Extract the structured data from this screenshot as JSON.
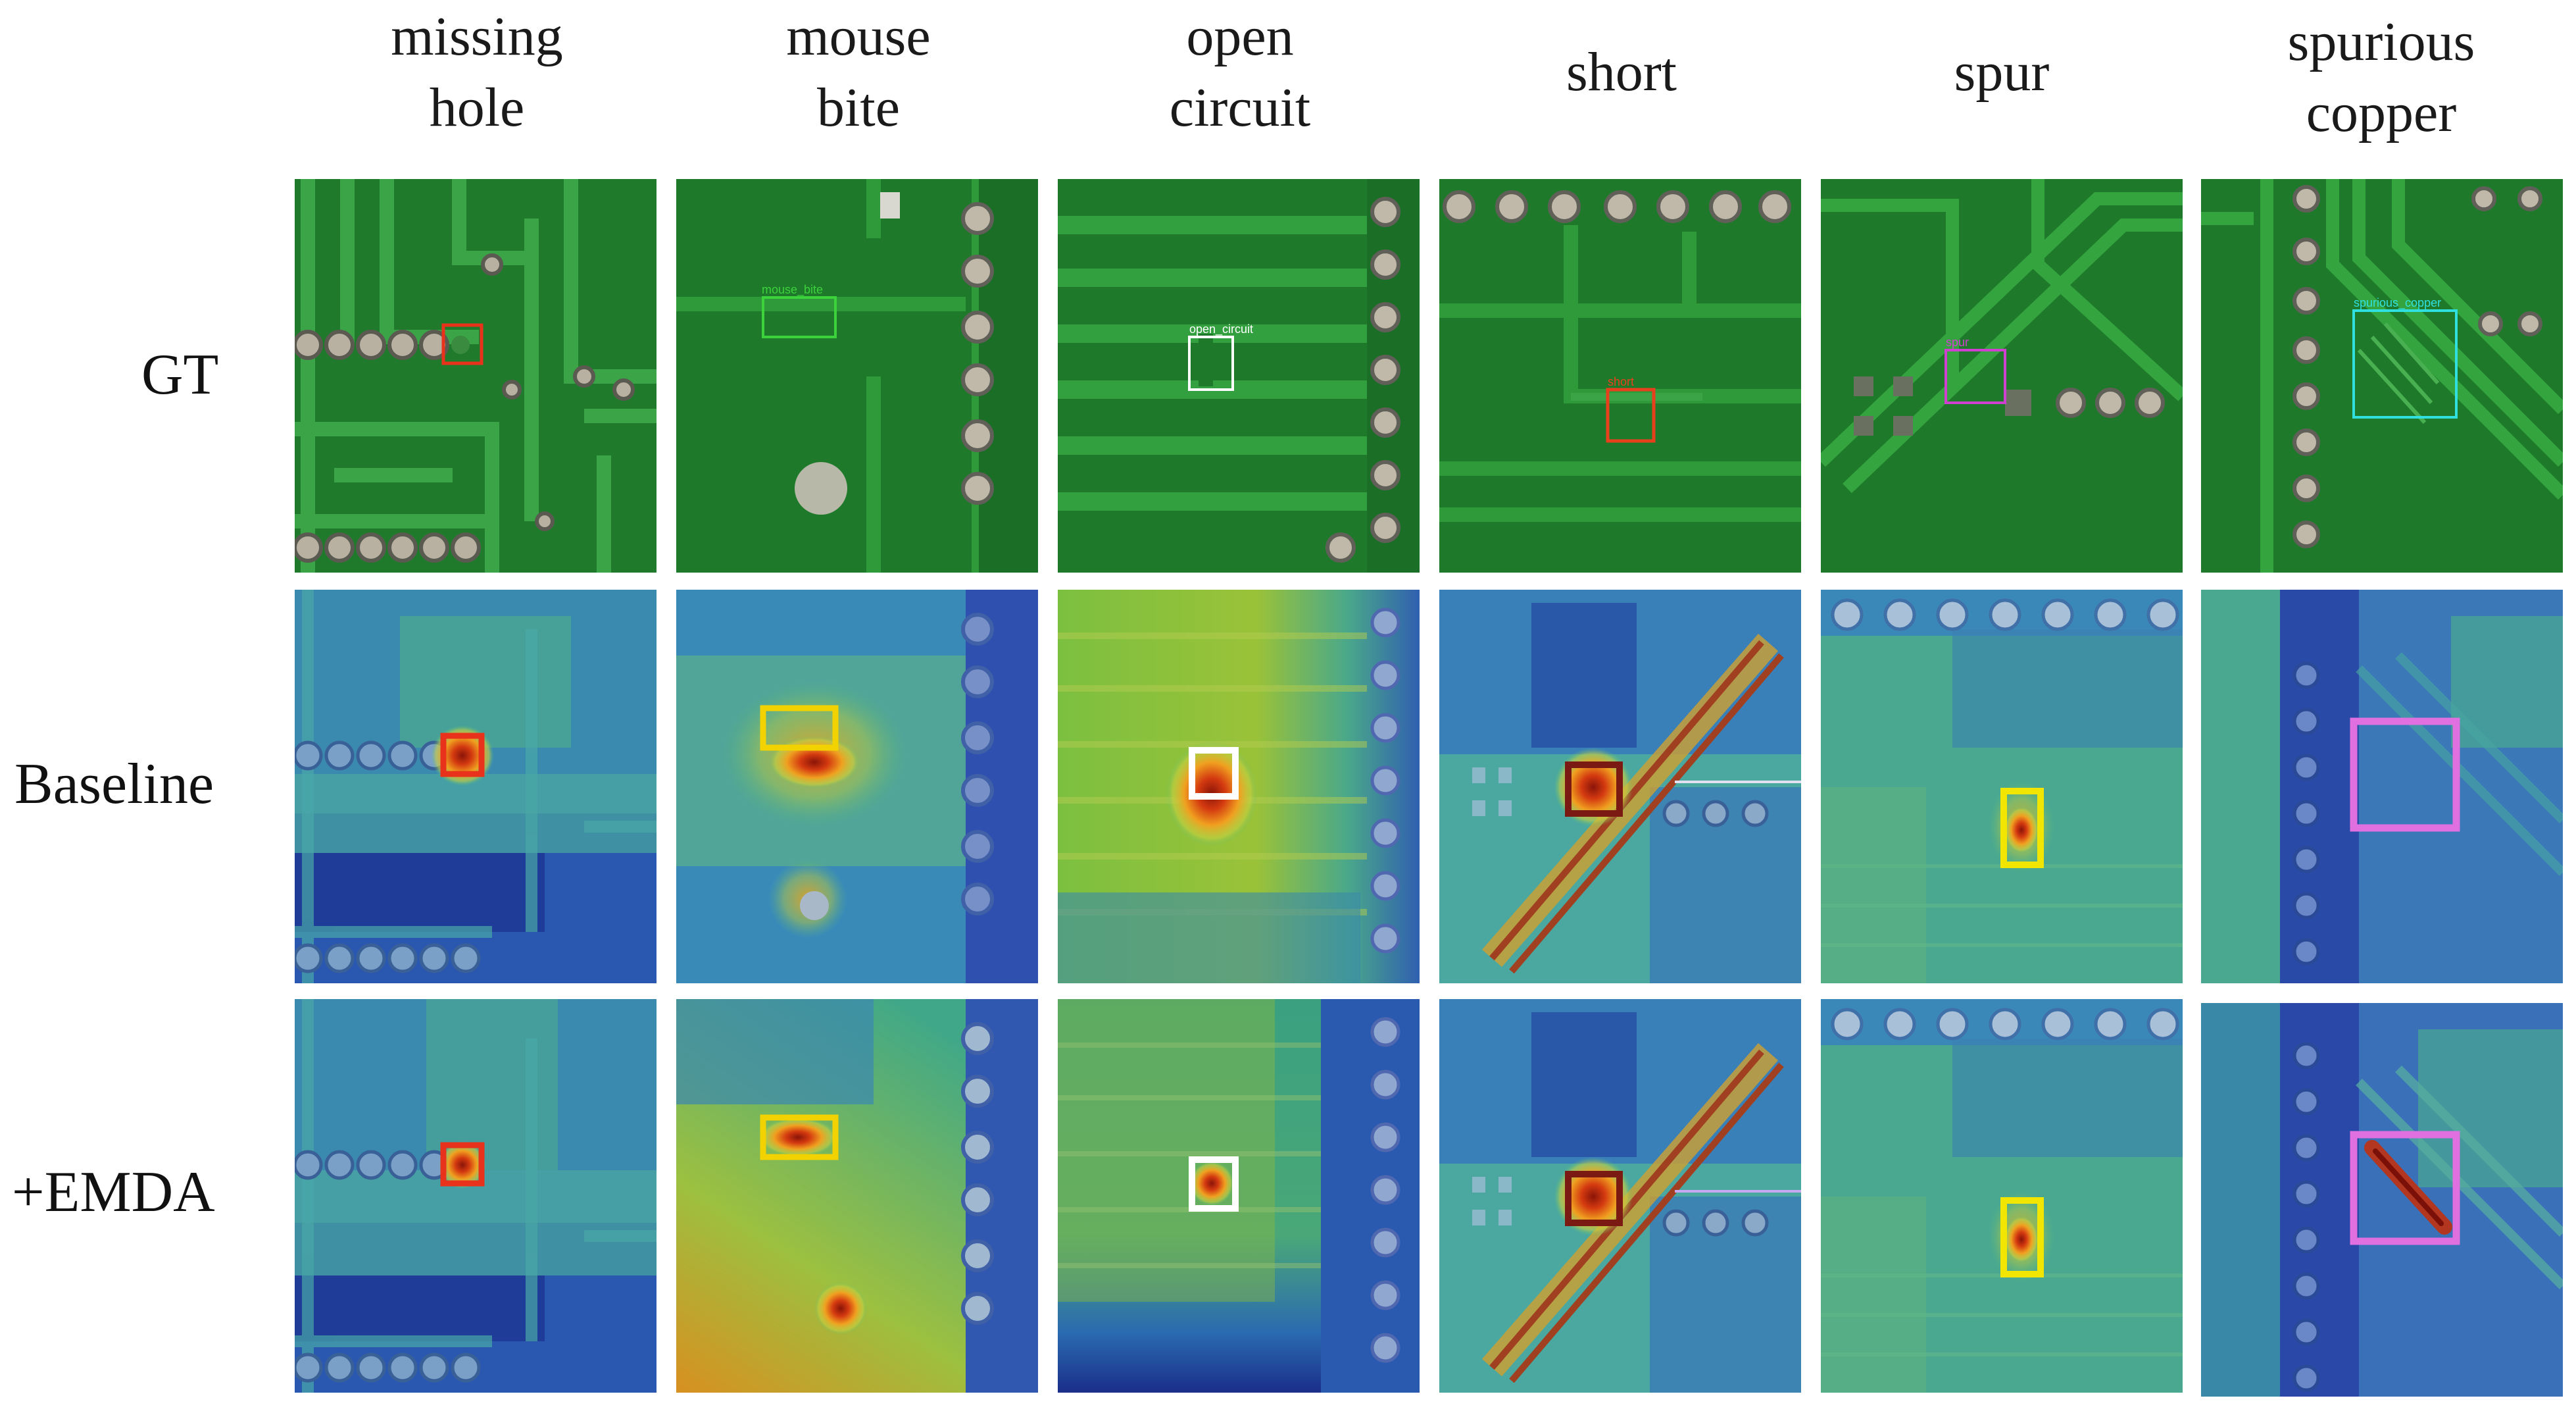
{
  "columns": [
    {
      "line1": "missing",
      "line2": "hole",
      "annotation": ""
    },
    {
      "line1": "mouse",
      "line2": "bite",
      "annotation": "mouse_bite"
    },
    {
      "line1": "open",
      "line2": "circuit",
      "annotation": "open_circuit"
    },
    {
      "line1": "short",
      "line2": "",
      "annotation": "short"
    },
    {
      "line1": "spur",
      "line2": "",
      "annotation": "spur"
    },
    {
      "line1": "spurious",
      "line2": "copper",
      "annotation": "spurious_copper"
    }
  ],
  "rows": [
    {
      "label": "GT"
    },
    {
      "label": "Baseline"
    },
    {
      "label": "+EMDA"
    }
  ],
  "colors": {
    "pcb_green": "#1f7a2c",
    "trace_green": "#2e9a3a",
    "box_missing_hole": "#e8321c",
    "box_mouse_bite_gt": "#3cd23c",
    "box_mouse_bite_heat": "#f2d200",
    "box_open_circuit": "#ffffff",
    "box_short_gt": "#e8401c",
    "box_short_heat": "#7a1a12",
    "box_spur_gt": "#d040d0",
    "box_spur_heat": "#f2e600",
    "box_spurious_copper_gt": "#30e0e0",
    "box_spurious_copper_heat": "#e070e0"
  }
}
